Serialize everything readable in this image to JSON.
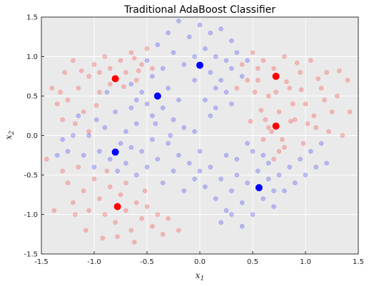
{
  "chart_data": {
    "type": "scatter",
    "title": "Traditional AdaBoost Classifier",
    "xlabel": "x",
    "xlabel_sub": "1",
    "ylabel": "x",
    "ylabel_sub": "2",
    "xlim": [
      -1.5,
      1.5
    ],
    "ylim": [
      -1.5,
      1.5
    ],
    "xticks": [
      "-1.5",
      "-1.0",
      "-0.5",
      "0.0",
      "0.5",
      "1.0",
      "1.5"
    ],
    "yticks": [
      "-1.5",
      "-1.0",
      "-0.5",
      "0.0",
      "0.5",
      "1.0",
      "1.5"
    ],
    "grid": true,
    "background_color": "#eaeaea",
    "colors": {
      "red": "#ff0000",
      "blue": "#0000ff"
    },
    "series": [
      {
        "color": "red",
        "marker": "large",
        "points": [
          [
            -0.8,
            0.72
          ],
          [
            0.72,
            0.75
          ],
          [
            0.72,
            0.12
          ],
          [
            -0.78,
            -0.9
          ]
        ]
      },
      {
        "color": "blue",
        "marker": "large",
        "points": [
          [
            0.0,
            0.89
          ],
          [
            -0.4,
            0.5
          ],
          [
            -0.8,
            -0.21
          ],
          [
            0.56,
            -0.66
          ]
        ]
      },
      {
        "color": "red",
        "marker": "small-translucent",
        "points": [
          [
            -1.4,
            0.6
          ],
          [
            -1.35,
            0.4
          ],
          [
            -1.3,
            0.2
          ],
          [
            -1.28,
            0.8
          ],
          [
            -1.2,
            0.95
          ],
          [
            -1.15,
            0.6
          ],
          [
            -1.1,
            0.3
          ],
          [
            -1.05,
            0.75
          ],
          [
            -1.0,
            0.9
          ],
          [
            -0.95,
            0.55
          ],
          [
            -0.9,
            1.0
          ],
          [
            -0.85,
            0.85
          ],
          [
            -0.75,
            0.95
          ],
          [
            -0.7,
            0.8
          ],
          [
            -0.65,
            1.05
          ],
          [
            -0.6,
            0.7
          ],
          [
            -0.55,
            0.9
          ],
          [
            -0.5,
            1.1
          ],
          [
            -0.45,
            0.85
          ],
          [
            -0.85,
            0.65
          ],
          [
            -0.95,
            0.8
          ],
          [
            -1.12,
            0.82
          ],
          [
            -1.25,
            0.45
          ],
          [
            -0.72,
            0.62
          ],
          [
            -0.62,
            0.98
          ],
          [
            -0.58,
            0.82
          ],
          [
            -1.18,
            0.15
          ],
          [
            -1.05,
            0.05
          ],
          [
            -1.32,
            0.55
          ],
          [
            -0.98,
            0.38
          ],
          [
            -1.45,
            -0.3
          ],
          [
            -1.3,
            -0.45
          ],
          [
            -1.25,
            -0.6
          ],
          [
            -1.2,
            -0.85
          ],
          [
            -1.15,
            -0.4
          ],
          [
            -1.1,
            -0.7
          ],
          [
            -1.05,
            -0.95
          ],
          [
            -1.0,
            -0.55
          ],
          [
            -0.95,
            -0.8
          ],
          [
            -0.9,
            -1.0
          ],
          [
            -0.85,
            -0.65
          ],
          [
            -0.8,
            -1.1
          ],
          [
            -0.75,
            -0.75
          ],
          [
            -0.7,
            -0.95
          ],
          [
            -0.65,
            -1.2
          ],
          [
            -0.6,
            -0.85
          ],
          [
            -0.55,
            -1.05
          ],
          [
            -0.5,
            -0.9
          ],
          [
            -0.45,
            -1.15
          ],
          [
            -0.4,
            -1.0
          ],
          [
            -0.35,
            -1.25
          ],
          [
            -0.7,
            -0.6
          ],
          [
            -0.88,
            -0.45
          ],
          [
            -1.18,
            -1.0
          ],
          [
            -1.38,
            -0.95
          ],
          [
            -0.62,
            -1.35
          ],
          [
            -0.78,
            -1.28
          ],
          [
            -0.52,
            -0.7
          ],
          [
            -0.3,
            -1.05
          ],
          [
            -1.08,
            -1.2
          ],
          [
            -0.92,
            -1.3
          ],
          [
            -0.2,
            -1.2
          ],
          [
            0.4,
            0.9
          ],
          [
            0.5,
            1.05
          ],
          [
            0.55,
            0.7
          ],
          [
            0.6,
            0.95
          ],
          [
            0.65,
            0.5
          ],
          [
            0.7,
            0.85
          ],
          [
            0.75,
            0.3
          ],
          [
            0.8,
            1.0
          ],
          [
            0.85,
            0.6
          ],
          [
            0.9,
            0.2
          ],
          [
            0.95,
            0.8
          ],
          [
            1.0,
            0.4
          ],
          [
            1.05,
            0.95
          ],
          [
            1.1,
            0.1
          ],
          [
            1.15,
            0.6
          ],
          [
            1.2,
            0.8
          ],
          [
            1.25,
            0.3
          ],
          [
            1.3,
            0.5
          ],
          [
            1.35,
            0.0
          ],
          [
            1.4,
            0.7
          ],
          [
            0.62,
            0.2
          ],
          [
            0.68,
            0.05
          ],
          [
            0.78,
            -0.05
          ],
          [
            0.88,
            0.4
          ],
          [
            0.98,
            -0.1
          ],
          [
            1.08,
            0.25
          ],
          [
            0.82,
            0.68
          ],
          [
            0.52,
            0.55
          ],
          [
            0.58,
            0.32
          ],
          [
            1.18,
            0.45
          ],
          [
            0.72,
            0.55
          ],
          [
            0.92,
            0.92
          ],
          [
            0.45,
            0.7
          ],
          [
            0.55,
            0.85
          ],
          [
            0.65,
            0.1
          ],
          [
            0.75,
            -0.2
          ],
          [
            0.7,
            -0.3
          ],
          [
            0.8,
            -0.15
          ],
          [
            1.02,
            0.15
          ],
          [
            1.22,
            0.05
          ],
          [
            1.32,
            0.82
          ],
          [
            1.12,
            0.72
          ],
          [
            0.86,
            0.18
          ],
          [
            0.96,
            0.58
          ],
          [
            0.48,
            0.18
          ],
          [
            0.6,
            -0.05
          ],
          [
            1.42,
            0.3
          ],
          [
            0.35,
            0.6
          ]
        ]
      },
      {
        "color": "blue",
        "marker": "small-translucent",
        "points": [
          [
            -0.3,
            1.3
          ],
          [
            -0.2,
            1.45
          ],
          [
            -0.1,
            1.25
          ],
          [
            0.0,
            1.4
          ],
          [
            0.1,
            1.3
          ],
          [
            0.2,
            1.35
          ],
          [
            0.3,
            1.2
          ],
          [
            -0.4,
            1.15
          ],
          [
            -0.25,
            1.05
          ],
          [
            0.05,
            1.1
          ],
          [
            0.15,
            1.0
          ],
          [
            0.25,
            0.95
          ],
          [
            0.35,
            1.05
          ],
          [
            -0.15,
            0.9
          ],
          [
            0.1,
            0.8
          ],
          [
            0.2,
            0.7
          ],
          [
            0.3,
            0.85
          ],
          [
            -0.05,
            0.7
          ],
          [
            0.4,
            0.75
          ],
          [
            0.15,
            0.6
          ],
          [
            -0.55,
            0.55
          ],
          [
            -0.5,
            0.4
          ],
          [
            -0.45,
            0.25
          ],
          [
            -0.35,
            0.35
          ],
          [
            -0.3,
            0.6
          ],
          [
            -0.25,
            0.2
          ],
          [
            -0.2,
            0.45
          ],
          [
            -0.15,
            0.1
          ],
          [
            -0.6,
            0.15
          ],
          [
            -0.65,
            0.35
          ],
          [
            -0.7,
            0.05
          ],
          [
            -0.75,
            -0.1
          ],
          [
            -0.85,
            -0.3
          ],
          [
            -0.9,
            0.1
          ],
          [
            -0.95,
            -0.2
          ],
          [
            -1.0,
            -0.4
          ],
          [
            -1.05,
            0.0
          ],
          [
            -1.1,
            -0.25
          ],
          [
            -1.15,
            0.25
          ],
          [
            -1.2,
            0.0
          ],
          [
            -1.25,
            -0.2
          ],
          [
            -1.3,
            -0.05
          ],
          [
            -1.35,
            -0.25
          ],
          [
            -0.8,
            0.3
          ],
          [
            -0.7,
            -0.35
          ],
          [
            -0.6,
            -0.5
          ],
          [
            -0.55,
            -0.2
          ],
          [
            -0.5,
            -0.4
          ],
          [
            -0.45,
            -0.05
          ],
          [
            -0.4,
            -0.3
          ],
          [
            -0.35,
            -0.6
          ],
          [
            -0.3,
            -0.1
          ],
          [
            -0.25,
            -0.45
          ],
          [
            -0.2,
            -0.25
          ],
          [
            -0.15,
            -0.7
          ],
          [
            -0.1,
            -0.35
          ],
          [
            -0.05,
            -0.55
          ],
          [
            0.0,
            -0.2
          ],
          [
            0.05,
            -0.65
          ],
          [
            0.1,
            -0.4
          ],
          [
            0.15,
            -0.8
          ],
          [
            0.2,
            -0.55
          ],
          [
            0.25,
            -0.95
          ],
          [
            0.3,
            -0.7
          ],
          [
            0.35,
            -0.5
          ],
          [
            0.4,
            -0.85
          ],
          [
            0.45,
            -0.6
          ],
          [
            0.5,
            -1.0
          ],
          [
            0.55,
            -0.45
          ],
          [
            0.6,
            -0.8
          ],
          [
            0.65,
            -0.55
          ],
          [
            0.7,
            -0.9
          ],
          [
            0.75,
            -0.5
          ],
          [
            0.8,
            -0.7
          ],
          [
            0.85,
            -0.4
          ],
          [
            0.9,
            -0.6
          ],
          [
            0.95,
            -0.3
          ],
          [
            1.0,
            -0.5
          ],
          [
            1.05,
            -0.2
          ],
          [
            1.1,
            -0.4
          ],
          [
            1.15,
            -0.1
          ],
          [
            1.2,
            -0.35
          ],
          [
            0.4,
            -1.15
          ],
          [
            0.2,
            -1.1
          ],
          [
            0.35,
            -0.3
          ],
          [
            0.5,
            -0.2
          ],
          [
            0.25,
            -0.25
          ],
          [
            0.6,
            -0.25
          ],
          [
            0.45,
            -0.1
          ],
          [
            0.65,
            -0.35
          ],
          [
            0.1,
            0.25
          ],
          [
            0.05,
            0.45
          ],
          [
            -0.05,
            0.05
          ],
          [
            0.15,
            0.35
          ],
          [
            0.25,
            0.55
          ],
          [
            0.3,
            0.4
          ],
          [
            -0.45,
            0.75
          ],
          [
            -0.5,
            0.95
          ],
          [
            -0.6,
            0.45
          ],
          [
            -0.65,
            0.65
          ],
          [
            -0.35,
            0.85
          ],
          [
            -0.05,
            1.0
          ],
          [
            0.45,
            0.95
          ],
          [
            -0.42,
            0.15
          ],
          [
            -0.88,
            0.55
          ],
          [
            -0.98,
            0.2
          ],
          [
            -0.78,
            -0.45
          ],
          [
            -0.65,
            -0.15
          ],
          [
            -0.28,
            0.0
          ],
          [
            0.0,
            -0.45
          ],
          [
            0.3,
            -1.0
          ],
          [
            0.7,
            -0.7
          ]
        ]
      }
    ]
  }
}
